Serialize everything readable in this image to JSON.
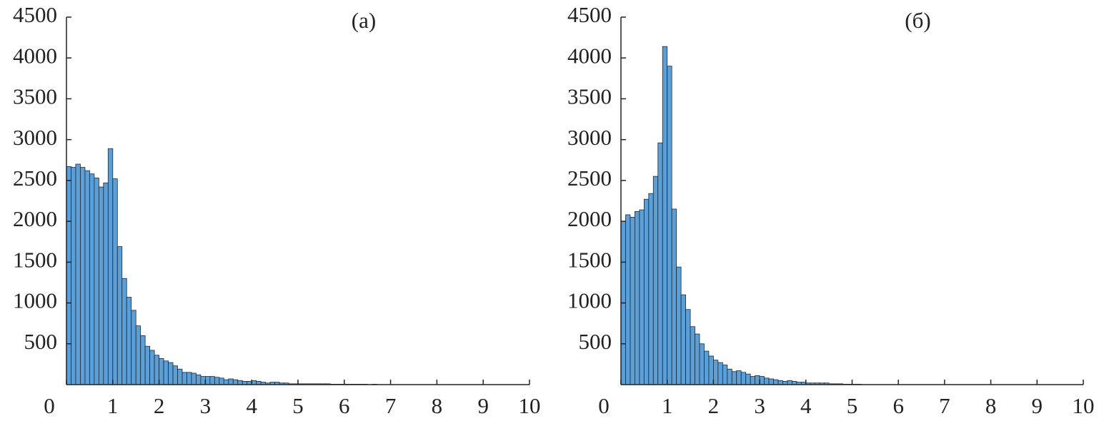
{
  "chart_data": [
    {
      "type": "histogram",
      "title": "(а)",
      "color": "#5b9fd6",
      "bins": [
        0,
        0.1,
        0.2,
        0.3,
        0.4,
        0.5,
        0.6,
        0.7,
        0.8,
        0.9,
        1,
        1.1,
        1.2,
        1.3,
        1.4,
        1.5,
        1.6,
        1.7,
        1.8,
        1.9,
        2,
        2.1,
        2.2,
        2.3,
        2.4,
        2.5,
        2.6,
        2.7,
        2.8,
        2.9,
        3,
        3.1,
        3.2,
        3.3,
        3.4,
        3.5,
        3.6,
        3.7,
        3.8,
        3.9,
        4,
        4.1,
        4.2,
        4.3,
        4.4,
        4.5,
        4.6,
        4.7,
        4.8,
        4.9,
        5,
        5.1,
        5.2,
        5.3,
        5.4,
        5.5,
        5.6,
        5.7,
        5.8,
        5.9,
        6,
        6.1,
        6.2,
        6.3,
        6.4,
        6.5,
        6.6,
        6.7,
        6.8,
        6.9,
        7,
        7.1,
        7.2,
        7.3,
        7.4,
        7.5,
        7.6,
        7.7,
        7.8,
        7.9,
        8,
        8.1,
        8.2,
        8.3,
        8.4,
        8.5,
        8.6,
        8.7,
        8.8,
        8.9,
        9,
        9.1,
        9.2,
        9.3,
        9.4,
        9.5,
        9.6,
        9.7,
        9.8,
        9.9,
        10
      ],
      "values": [
        2670,
        2660,
        2700,
        2660,
        2620,
        2580,
        2530,
        2420,
        2470,
        2890,
        2520,
        1690,
        1300,
        1070,
        910,
        720,
        600,
        470,
        420,
        360,
        320,
        290,
        270,
        230,
        190,
        150,
        150,
        140,
        120,
        100,
        100,
        100,
        90,
        80,
        60,
        70,
        60,
        50,
        40,
        40,
        50,
        40,
        30,
        20,
        30,
        30,
        20,
        20,
        10,
        10,
        10,
        10,
        10,
        10,
        10,
        10,
        10,
        5,
        5,
        5,
        5,
        5,
        5,
        5,
        5,
        0,
        5,
        0,
        0,
        0,
        0,
        0,
        0,
        0,
        0,
        0,
        0,
        0,
        0,
        0,
        0,
        0,
        0,
        0,
        0,
        0,
        0,
        0,
        0,
        0,
        0,
        0,
        0,
        0,
        0,
        0,
        0,
        0,
        0,
        0
      ],
      "xlim": [
        0,
        10
      ],
      "xticks": [
        0,
        1,
        2,
        3,
        4,
        5,
        6,
        7,
        8,
        9,
        10
      ],
      "ylim": [
        0,
        4500
      ],
      "yticks": [
        500,
        1000,
        1500,
        2000,
        2500,
        3000,
        3500,
        4000,
        4500
      ]
    },
    {
      "type": "histogram",
      "title": "(б)",
      "color": "#5b9fd6",
      "bins": [
        0,
        0.1,
        0.2,
        0.3,
        0.4,
        0.5,
        0.6,
        0.7,
        0.8,
        0.9,
        1,
        1.1,
        1.2,
        1.3,
        1.4,
        1.5,
        1.6,
        1.7,
        1.8,
        1.9,
        2,
        2.1,
        2.2,
        2.3,
        2.4,
        2.5,
        2.6,
        2.7,
        2.8,
        2.9,
        3,
        3.1,
        3.2,
        3.3,
        3.4,
        3.5,
        3.6,
        3.7,
        3.8,
        3.9,
        4,
        4.1,
        4.2,
        4.3,
        4.4,
        4.5,
        4.6,
        4.7,
        4.8,
        4.9,
        5,
        5.1,
        5.2,
        5.3,
        5.4,
        5.5,
        5.6,
        5.7,
        5.8,
        5.9,
        6,
        6.1,
        6.2,
        6.3,
        6.4,
        6.5,
        6.6,
        6.7,
        6.8,
        6.9,
        7,
        7.1,
        7.2,
        7.3,
        7.4,
        7.5,
        7.6,
        7.7,
        7.8,
        7.9,
        8,
        8.1,
        8.2,
        8.3,
        8.4,
        8.5,
        8.6,
        8.7,
        8.8,
        8.9,
        9,
        9.1,
        9.2,
        9.3,
        9.4,
        9.5,
        9.6,
        9.7,
        9.8,
        9.9,
        10
      ],
      "values": [
        2000,
        2080,
        2050,
        2120,
        2140,
        2270,
        2340,
        2550,
        2960,
        4140,
        3900,
        2150,
        1440,
        1100,
        920,
        710,
        620,
        500,
        410,
        350,
        300,
        270,
        240,
        190,
        160,
        170,
        150,
        130,
        100,
        110,
        100,
        80,
        70,
        60,
        50,
        40,
        50,
        40,
        30,
        30,
        20,
        20,
        20,
        20,
        20,
        10,
        10,
        10,
        5,
        5,
        5,
        5,
        0,
        0,
        0,
        0,
        0,
        0,
        0,
        0,
        0,
        0,
        0,
        0,
        0,
        0,
        0,
        0,
        0,
        0,
        0,
        0,
        0,
        0,
        0,
        0,
        0,
        0,
        0,
        0,
        0,
        0,
        0,
        0,
        0,
        0,
        0,
        0,
        0,
        0,
        0,
        0,
        0,
        0,
        0,
        0,
        0,
        0,
        0,
        0
      ],
      "xlim": [
        0,
        10
      ],
      "xticks": [
        0,
        1,
        2,
        3,
        4,
        5,
        6,
        7,
        8,
        9,
        10
      ],
      "ylim": [
        0,
        4500
      ],
      "yticks": [
        500,
        1000,
        1500,
        2000,
        2500,
        3000,
        3500,
        4000,
        4500
      ]
    }
  ]
}
